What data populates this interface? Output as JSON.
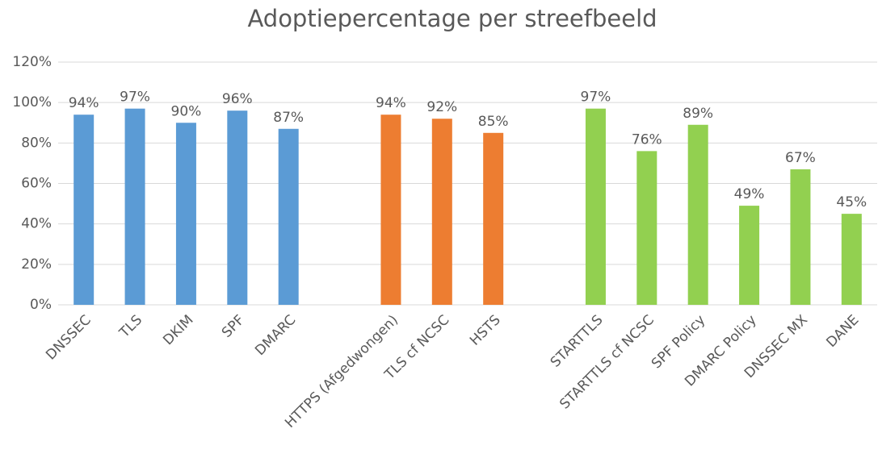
{
  "chart_data": {
    "type": "bar",
    "title": "Adoptiepercentage per streefbeeld",
    "categories": [
      "DNSSEC",
      "TLS",
      "DKIM",
      "SPF",
      "DMARC",
      null,
      "HTTPS (Afgedwongen)",
      "TLS cf NCSC",
      "HSTS",
      null,
      "STARTTLS",
      "STARTTLS cf NCSC",
      "SPF Policy",
      "DMARC Policy",
      "DNSSEC MX",
      "DANE"
    ],
    "values": [
      94,
      97,
      90,
      96,
      87,
      null,
      94,
      92,
      85,
      null,
      97,
      76,
      89,
      49,
      67,
      45
    ],
    "value_labels": [
      "94%",
      "97%",
      "90%",
      "96%",
      "87%",
      null,
      "94%",
      "92%",
      "85%",
      null,
      "97%",
      "76%",
      "89%",
      "49%",
      "67%",
      "45%"
    ],
    "colors": [
      "#5b9bd5",
      "#5b9bd5",
      "#5b9bd5",
      "#5b9bd5",
      "#5b9bd5",
      null,
      "#ed7d31",
      "#ed7d31",
      "#ed7d31",
      null,
      "#92d050",
      "#92d050",
      "#92d050",
      "#92d050",
      "#92d050",
      "#92d050"
    ],
    "ylim": [
      0,
      120
    ],
    "yticks": [
      {
        "value": 0,
        "label": "0%"
      },
      {
        "value": 20,
        "label": "20%"
      },
      {
        "value": 40,
        "label": "40%"
      },
      {
        "value": 60,
        "label": "60%"
      },
      {
        "value": 80,
        "label": "80%"
      },
      {
        "value": 100,
        "label": "100%"
      },
      {
        "value": 120,
        "label": "120%"
      }
    ],
    "grid": true
  }
}
